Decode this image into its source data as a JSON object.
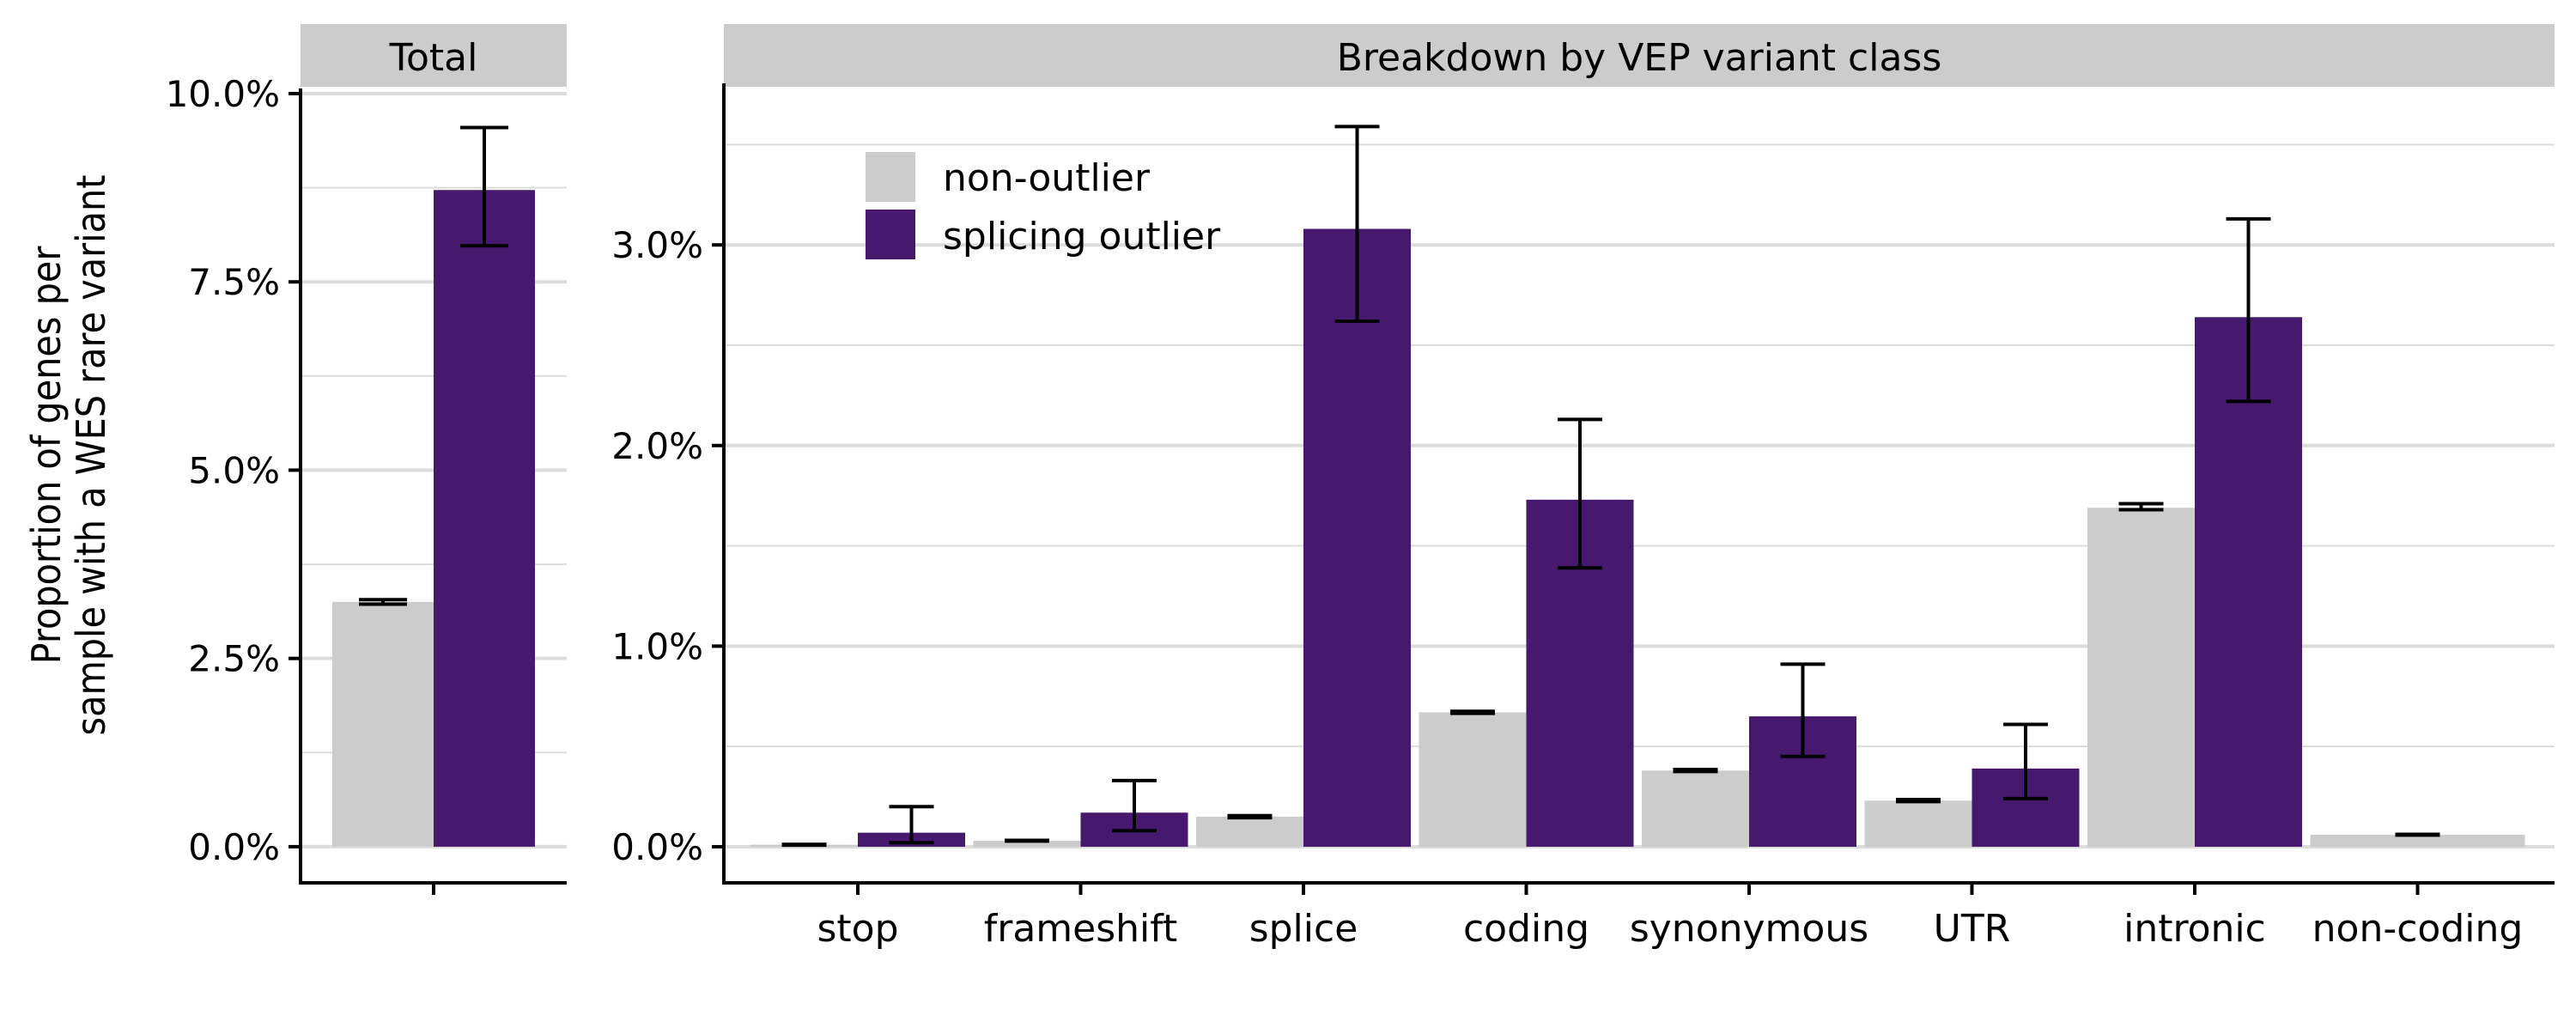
{
  "chart_data": [
    {
      "type": "bar",
      "panel_title": "Total",
      "ylabel": "Proportion of genes per\nsample with a WES rare variant",
      "ylabel_lines": [
        "Proportion of genes per",
        "sample with a WES rare variant"
      ],
      "ylim": [
        -0.48,
        10.0
      ],
      "yticks": [
        0,
        2.5,
        5.0,
        7.5,
        10.0
      ],
      "ytick_labels": [
        "0.0%",
        "2.5%",
        "5.0%",
        "7.5%",
        "10.0%"
      ],
      "grid": true,
      "categories": [
        ""
      ],
      "series": [
        {
          "name": "non-outlier",
          "color": "#cccccc",
          "values": [
            3.25
          ],
          "err_low": [
            3.22
          ],
          "err_high": [
            3.28
          ]
        },
        {
          "name": "splicing outlier",
          "color": "#46196e",
          "values": [
            8.72
          ],
          "err_low": [
            7.98
          ],
          "err_high": [
            9.55
          ]
        }
      ]
    },
    {
      "type": "bar",
      "panel_title": "Breakdown by VEP variant class",
      "ylim": [
        -0.18,
        3.78
      ],
      "yticks": [
        0,
        1,
        2,
        3
      ],
      "ytick_labels": [
        "0.0%",
        "1.0%",
        "2.0%",
        "3.0%"
      ],
      "grid": true,
      "legend_position": "top-left",
      "categories": [
        "stop",
        "frameshift",
        "splice",
        "coding",
        "synonymous",
        "UTR",
        "intronic",
        "non-coding"
      ],
      "series": [
        {
          "name": "non-outlier",
          "color": "#cccccc",
          "values": [
            0.01,
            0.03,
            0.15,
            0.67,
            0.38,
            0.23,
            1.69,
            0.06
          ],
          "err_low": [
            0.008,
            0.028,
            0.145,
            0.665,
            0.375,
            0.225,
            1.68,
            0.058
          ],
          "err_high": [
            0.012,
            0.032,
            0.155,
            0.675,
            0.385,
            0.235,
            1.71,
            0.062
          ]
        },
        {
          "name": "splicing outlier",
          "color": "#46196e",
          "values": [
            0.07,
            0.17,
            3.08,
            1.73,
            0.65,
            0.39,
            2.64,
            null
          ],
          "err_low": [
            0.02,
            0.08,
            2.62,
            1.39,
            0.45,
            0.24,
            2.22,
            null
          ],
          "err_high": [
            0.2,
            0.33,
            3.59,
            2.13,
            0.91,
            0.61,
            3.13,
            null
          ]
        }
      ]
    }
  ]
}
